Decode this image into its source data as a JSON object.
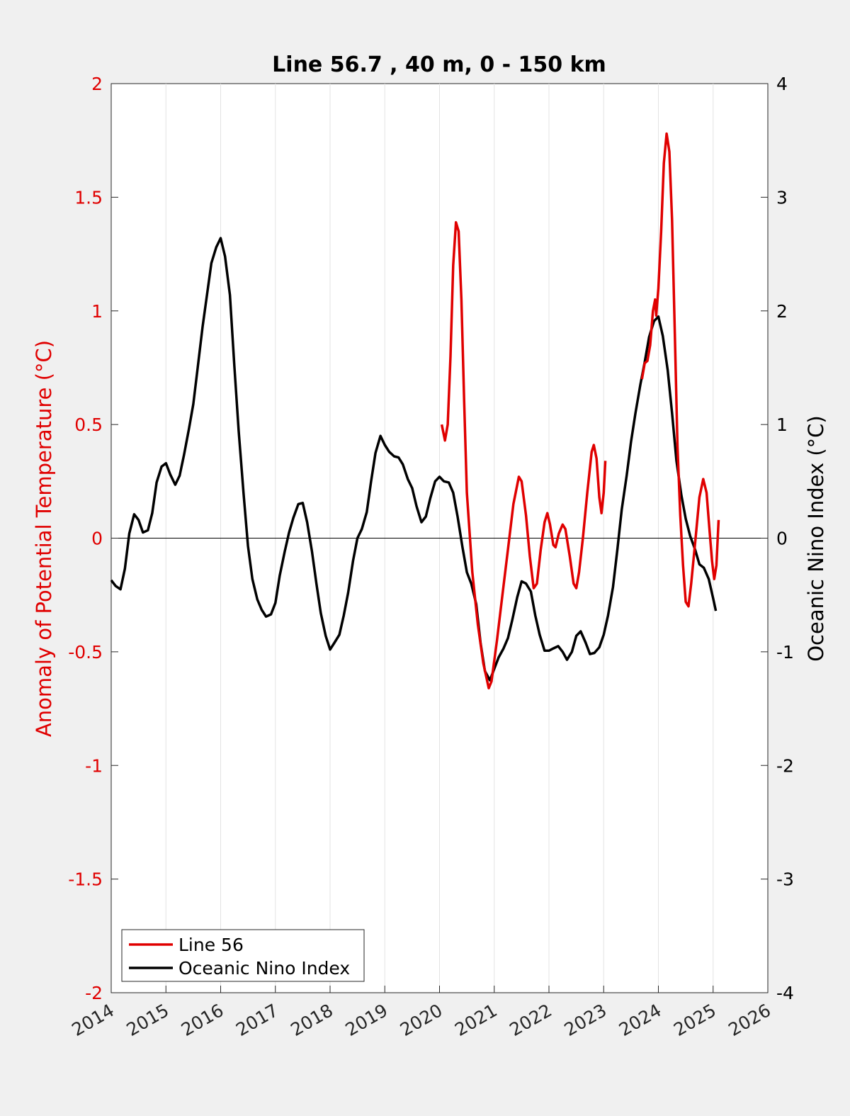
{
  "chart_data": {
    "type": "line",
    "title": "Line 56.7 , 40 m, 0 - 150 km",
    "xlabel": "",
    "ylabel_left": "Anomaly of Potential Temperature (°C)",
    "ylabel_right": "Oceanic Nino Index (°C)",
    "xlim": [
      2014,
      2026
    ],
    "ylim_left": [
      -2,
      2
    ],
    "ylim_right": [
      -4,
      4
    ],
    "x_ticks": [
      "2014",
      "2015",
      "2016",
      "2017",
      "2018",
      "2019",
      "2020",
      "2021",
      "2022",
      "2023",
      "2024",
      "2025",
      "2026"
    ],
    "y_ticks_left": [
      "2",
      "1.5",
      "1",
      "0.5",
      "0",
      "-0.5",
      "-1",
      "-1.5",
      "-2"
    ],
    "y_ticks_right": [
      "4",
      "3",
      "2",
      "1",
      "0",
      "-1",
      "-2",
      "-3",
      "-4"
    ],
    "grid": "vertical",
    "zero_line": true,
    "legend_position": "bottom-left",
    "colors": {
      "left_axis": "#e00000",
      "right_axis": "#000000",
      "line56": "#e00000",
      "oni": "#000000"
    },
    "series": [
      {
        "name": "Line 56",
        "axis": "left",
        "color": "#e00000",
        "segments": [
          [
            [
              2020.04,
              0.5
            ],
            [
              2020.1,
              0.43
            ],
            [
              2020.15,
              0.5
            ],
            [
              2020.2,
              0.8
            ],
            [
              2020.25,
              1.2
            ],
            [
              2020.3,
              1.39
            ],
            [
              2020.35,
              1.35
            ],
            [
              2020.4,
              1.05
            ],
            [
              2020.45,
              0.6
            ],
            [
              2020.5,
              0.2
            ],
            [
              2020.6,
              -0.15
            ],
            [
              2020.7,
              -0.38
            ],
            [
              2020.8,
              -0.55
            ],
            [
              2020.9,
              -0.66
            ],
            [
              2020.95,
              -0.63
            ],
            [
              2021.05,
              -0.45
            ],
            [
              2021.15,
              -0.25
            ],
            [
              2021.25,
              -0.05
            ],
            [
              2021.35,
              0.15
            ],
            [
              2021.45,
              0.27
            ],
            [
              2021.5,
              0.25
            ],
            [
              2021.58,
              0.1
            ],
            [
              2021.65,
              -0.08
            ],
            [
              2021.72,
              -0.22
            ],
            [
              2021.78,
              -0.2
            ],
            [
              2021.85,
              -0.05
            ],
            [
              2021.92,
              0.07
            ],
            [
              2021.97,
              0.11
            ],
            [
              2022.02,
              0.06
            ],
            [
              2022.08,
              -0.03
            ],
            [
              2022.12,
              -0.04
            ],
            [
              2022.18,
              0.02
            ],
            [
              2022.25,
              0.06
            ],
            [
              2022.3,
              0.04
            ],
            [
              2022.38,
              -0.08
            ],
            [
              2022.45,
              -0.2
            ],
            [
              2022.5,
              -0.22
            ],
            [
              2022.55,
              -0.15
            ],
            [
              2022.62,
              0.0
            ],
            [
              2022.7,
              0.2
            ],
            [
              2022.78,
              0.38
            ],
            [
              2022.82,
              0.41
            ],
            [
              2022.87,
              0.35
            ],
            [
              2022.92,
              0.18
            ],
            [
              2022.96,
              0.11
            ],
            [
              2023.0,
              0.2
            ],
            [
              2023.03,
              0.34
            ]
          ],
          [
            [
              2023.7,
              0.7
            ],
            [
              2023.75,
              0.77
            ],
            [
              2023.8,
              0.78
            ],
            [
              2023.85,
              0.85
            ],
            [
              2023.9,
              1.0
            ],
            [
              2023.94,
              1.05
            ],
            [
              2023.96,
              0.98
            ],
            [
              2024.0,
              1.1
            ],
            [
              2024.05,
              1.35
            ],
            [
              2024.1,
              1.65
            ],
            [
              2024.15,
              1.78
            ],
            [
              2024.2,
              1.7
            ],
            [
              2024.25,
              1.4
            ],
            [
              2024.3,
              0.9
            ],
            [
              2024.35,
              0.4
            ],
            [
              2024.4,
              0.1
            ],
            [
              2024.45,
              -0.12
            ],
            [
              2024.5,
              -0.28
            ],
            [
              2024.55,
              -0.3
            ],
            [
              2024.6,
              -0.2
            ],
            [
              2024.68,
              0.0
            ],
            [
              2024.75,
              0.18
            ],
            [
              2024.82,
              0.26
            ],
            [
              2024.88,
              0.2
            ],
            [
              2024.93,
              0.05
            ],
            [
              2024.98,
              -0.1
            ],
            [
              2025.02,
              -0.18
            ],
            [
              2025.06,
              -0.12
            ],
            [
              2025.1,
              0.08
            ]
          ]
        ]
      },
      {
        "name": "Oceanic Nino Index",
        "axis": "right",
        "color": "#000000",
        "points": [
          [
            2014.0,
            -0.37
          ],
          [
            2014.08,
            -0.42
          ],
          [
            2014.17,
            -0.45
          ],
          [
            2014.25,
            -0.27
          ],
          [
            2014.33,
            0.04
          ],
          [
            2014.42,
            0.21
          ],
          [
            2014.5,
            0.16
          ],
          [
            2014.58,
            0.05
          ],
          [
            2014.67,
            0.07
          ],
          [
            2014.75,
            0.22
          ],
          [
            2014.83,
            0.49
          ],
          [
            2014.92,
            0.63
          ],
          [
            2015.0,
            0.66
          ],
          [
            2015.08,
            0.56
          ],
          [
            2015.17,
            0.47
          ],
          [
            2015.25,
            0.55
          ],
          [
            2015.33,
            0.73
          ],
          [
            2015.42,
            0.96
          ],
          [
            2015.5,
            1.18
          ],
          [
            2015.58,
            1.5
          ],
          [
            2015.67,
            1.86
          ],
          [
            2015.75,
            2.14
          ],
          [
            2015.83,
            2.42
          ],
          [
            2015.92,
            2.56
          ],
          [
            2016.0,
            2.64
          ],
          [
            2016.08,
            2.48
          ],
          [
            2016.17,
            2.14
          ],
          [
            2016.25,
            1.52
          ],
          [
            2016.33,
            0.94
          ],
          [
            2016.42,
            0.39
          ],
          [
            2016.5,
            -0.07
          ],
          [
            2016.58,
            -0.36
          ],
          [
            2016.67,
            -0.54
          ],
          [
            2016.75,
            -0.63
          ],
          [
            2016.83,
            -0.69
          ],
          [
            2016.92,
            -0.67
          ],
          [
            2017.0,
            -0.57
          ],
          [
            2017.08,
            -0.33
          ],
          [
            2017.17,
            -0.12
          ],
          [
            2017.25,
            0.05
          ],
          [
            2017.33,
            0.18
          ],
          [
            2017.42,
            0.3
          ],
          [
            2017.5,
            0.31
          ],
          [
            2017.58,
            0.14
          ],
          [
            2017.67,
            -0.12
          ],
          [
            2017.75,
            -0.4
          ],
          [
            2017.83,
            -0.66
          ],
          [
            2017.92,
            -0.86
          ],
          [
            2018.0,
            -0.98
          ],
          [
            2018.08,
            -0.92
          ],
          [
            2018.17,
            -0.85
          ],
          [
            2018.25,
            -0.68
          ],
          [
            2018.33,
            -0.48
          ],
          [
            2018.42,
            -0.2
          ],
          [
            2018.5,
            0.0
          ],
          [
            2018.58,
            0.08
          ],
          [
            2018.67,
            0.23
          ],
          [
            2018.75,
            0.5
          ],
          [
            2018.83,
            0.75
          ],
          [
            2018.92,
            0.9
          ],
          [
            2019.0,
            0.82
          ],
          [
            2019.08,
            0.76
          ],
          [
            2019.17,
            0.72
          ],
          [
            2019.25,
            0.71
          ],
          [
            2019.33,
            0.65
          ],
          [
            2019.42,
            0.52
          ],
          [
            2019.5,
            0.44
          ],
          [
            2019.58,
            0.28
          ],
          [
            2019.67,
            0.14
          ],
          [
            2019.75,
            0.19
          ],
          [
            2019.83,
            0.35
          ],
          [
            2019.92,
            0.5
          ],
          [
            2020.0,
            0.54
          ],
          [
            2020.08,
            0.5
          ],
          [
            2020.17,
            0.49
          ],
          [
            2020.25,
            0.4
          ],
          [
            2020.33,
            0.19
          ],
          [
            2020.42,
            -0.08
          ],
          [
            2020.5,
            -0.3
          ],
          [
            2020.58,
            -0.4
          ],
          [
            2020.67,
            -0.58
          ],
          [
            2020.75,
            -0.92
          ],
          [
            2020.83,
            -1.17
          ],
          [
            2020.92,
            -1.25
          ],
          [
            2021.0,
            -1.15
          ],
          [
            2021.08,
            -1.05
          ],
          [
            2021.17,
            -0.97
          ],
          [
            2021.25,
            -0.88
          ],
          [
            2021.33,
            -0.72
          ],
          [
            2021.42,
            -0.52
          ],
          [
            2021.5,
            -0.38
          ],
          [
            2021.58,
            -0.4
          ],
          [
            2021.67,
            -0.47
          ],
          [
            2021.75,
            -0.68
          ],
          [
            2021.83,
            -0.85
          ],
          [
            2021.92,
            -0.99
          ],
          [
            2022.0,
            -0.99
          ],
          [
            2022.08,
            -0.97
          ],
          [
            2022.17,
            -0.95
          ],
          [
            2022.25,
            -1.0
          ],
          [
            2022.33,
            -1.07
          ],
          [
            2022.42,
            -1.0
          ],
          [
            2022.5,
            -0.86
          ],
          [
            2022.58,
            -0.82
          ],
          [
            2022.67,
            -0.92
          ],
          [
            2022.75,
            -1.02
          ],
          [
            2022.83,
            -1.01
          ],
          [
            2022.92,
            -0.96
          ],
          [
            2023.0,
            -0.85
          ],
          [
            2023.08,
            -0.68
          ],
          [
            2023.17,
            -0.43
          ],
          [
            2023.25,
            -0.1
          ],
          [
            2023.33,
            0.25
          ],
          [
            2023.42,
            0.55
          ],
          [
            2023.5,
            0.85
          ],
          [
            2023.58,
            1.1
          ],
          [
            2023.67,
            1.35
          ],
          [
            2023.75,
            1.55
          ],
          [
            2023.83,
            1.77
          ],
          [
            2023.92,
            1.91
          ],
          [
            2024.0,
            1.95
          ],
          [
            2024.08,
            1.78
          ],
          [
            2024.17,
            1.48
          ],
          [
            2024.25,
            1.1
          ],
          [
            2024.33,
            0.68
          ],
          [
            2024.42,
            0.38
          ],
          [
            2024.5,
            0.17
          ],
          [
            2024.58,
            0.02
          ],
          [
            2024.67,
            -0.1
          ],
          [
            2024.75,
            -0.23
          ],
          [
            2024.83,
            -0.26
          ],
          [
            2024.92,
            -0.36
          ],
          [
            2025.0,
            -0.53
          ],
          [
            2025.05,
            -0.64
          ]
        ]
      }
    ]
  }
}
